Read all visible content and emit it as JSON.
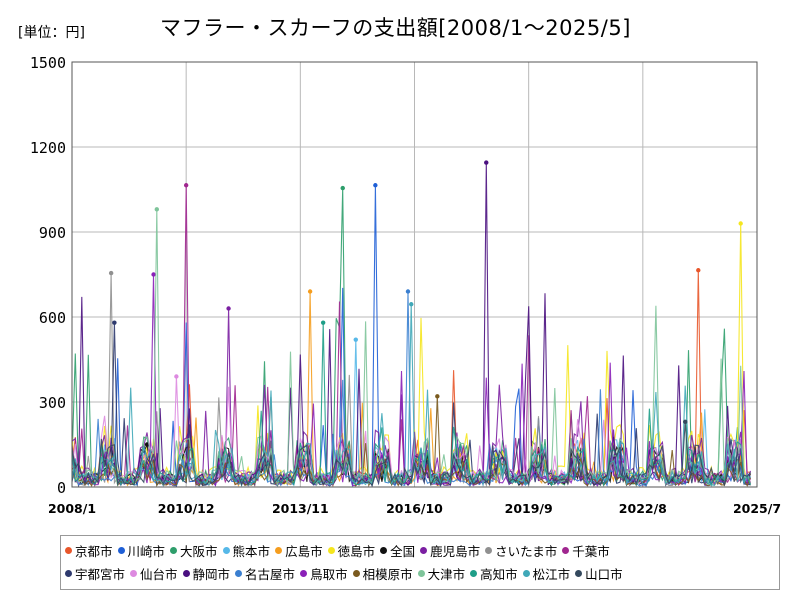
{
  "unit_label": "[単位：円]",
  "chart_data": {
    "type": "line",
    "title": "マフラー・スカーフの支出額[2008/1～2025/5]",
    "xlabel": "",
    "ylabel": "",
    "ylim": [
      0,
      1500
    ],
    "y_ticks": [
      0,
      300,
      600,
      900,
      1200,
      1500
    ],
    "x_range": [
      "2008/1",
      "2025/7"
    ],
    "x_ticks": [
      "2008/1",
      "2010/12",
      "2013/11",
      "2016/10",
      "2019/9",
      "2022/8",
      "2025/7"
    ],
    "grid": true,
    "legend_position": "bottom",
    "series": [
      {
        "name": "京都市",
        "color": "#e8562a",
        "peak": 765,
        "peak_date": "2024/1"
      },
      {
        "name": "川崎市",
        "color": "#1f5fd6",
        "peak": 1065,
        "peak_date": "2015/10"
      },
      {
        "name": "大阪市",
        "color": "#2e9e6b",
        "peak": 1055,
        "peak_date": "2014/12"
      },
      {
        "name": "熊本市",
        "color": "#56b8e8",
        "peak": 520,
        "peak_date": "2015/4"
      },
      {
        "name": "広島市",
        "color": "#f59d1e",
        "peak": 690,
        "peak_date": "2014/2"
      },
      {
        "name": "徳島市",
        "color": "#f5e61e",
        "peak": 930,
        "peak_date": "2025/2"
      },
      {
        "name": "全国",
        "color": "#111111",
        "peak": 150,
        "peak_date": "2009/12"
      },
      {
        "name": "鹿児島市",
        "color": "#7b1fa2",
        "peak": 630,
        "peak_date": "2012/1"
      },
      {
        "name": "さいたま市",
        "color": "#909090",
        "peak": 755,
        "peak_date": "2009/1"
      },
      {
        "name": "千葉市",
        "color": "#a0268f",
        "peak": 1065,
        "peak_date": "2010/12"
      },
      {
        "name": "宇都宮市",
        "color": "#2e3a6e",
        "peak": 580,
        "peak_date": "2009/2"
      },
      {
        "name": "仙台市",
        "color": "#dd8ae0",
        "peak": 390,
        "peak_date": "2010/9"
      },
      {
        "name": "静岡市",
        "color": "#4a1080",
        "peak": 1145,
        "peak_date": "2018/8"
      },
      {
        "name": "名古屋市",
        "color": "#3a7fd0",
        "peak": 690,
        "peak_date": "2016/8"
      },
      {
        "name": "鳥取市",
        "color": "#8a20b8",
        "peak": 750,
        "peak_date": "2010/2"
      },
      {
        "name": "相模原市",
        "color": "#7a5a1e",
        "peak": 320,
        "peak_date": "2017/5"
      },
      {
        "name": "大津市",
        "color": "#7ec49a",
        "peak": 980,
        "peak_date": "2010/3"
      },
      {
        "name": "高知市",
        "color": "#1e9e88",
        "peak": 580,
        "peak_date": "2014/6"
      },
      {
        "name": "松江市",
        "color": "#40a8b8",
        "peak": 645,
        "peak_date": "2016/9"
      },
      {
        "name": "山口市",
        "color": "#34495e",
        "peak": 230,
        "peak_date": "2023/9"
      }
    ]
  }
}
